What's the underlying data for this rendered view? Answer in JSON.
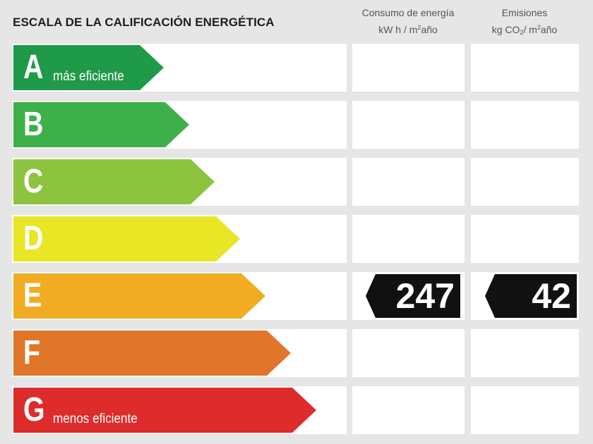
{
  "title": "ESCALA DE LA CALIFICACIÓN ENERGÉTICA",
  "columns": {
    "consumption": {
      "line1": "Consumo de energía",
      "unit_a": "kW h / m",
      "unit_sup": "2",
      "unit_b": "año"
    },
    "emissions": {
      "line1": "Emisiones",
      "unit_a": "kg CO",
      "unit_sub": "2",
      "unit_c": "/ m",
      "unit_sup": "2",
      "unit_b": "año"
    }
  },
  "colors": {
    "A": "#1f9a48",
    "B": "#3eb04a",
    "C": "#8cc43f",
    "D": "#e8e625",
    "E": "#f0ac22",
    "F": "#e1752a",
    "G": "#de2b2b"
  },
  "ratings": [
    {
      "letter": "A",
      "tag": "más eficiente"
    },
    {
      "letter": "B",
      "tag": ""
    },
    {
      "letter": "C",
      "tag": ""
    },
    {
      "letter": "D",
      "tag": ""
    },
    {
      "letter": "E",
      "tag": ""
    },
    {
      "letter": "F",
      "tag": ""
    },
    {
      "letter": "G",
      "tag": "menos eficiente"
    }
  ],
  "current": {
    "rating": "E",
    "consumption": "247",
    "emissions": "42"
  }
}
